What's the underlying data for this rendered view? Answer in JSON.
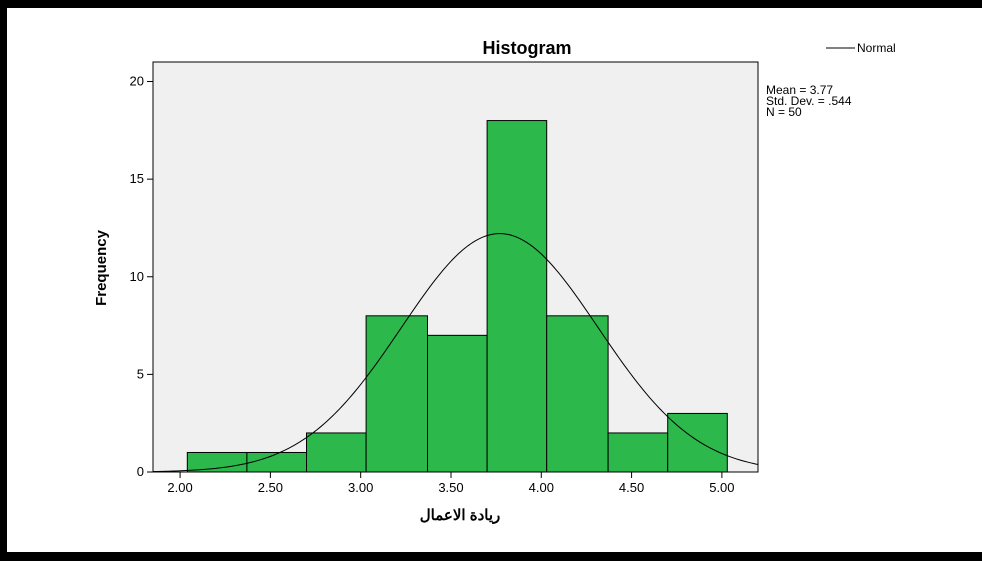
{
  "chart_data": {
    "type": "bar",
    "title": "Histogram",
    "xlabel": "ريادة الاعمال",
    "ylabel": "Frequency",
    "xlim": [
      1.85,
      5.2
    ],
    "ylim": [
      0,
      21
    ],
    "xticks": [
      2.0,
      2.5,
      3.0,
      3.5,
      4.0,
      4.5,
      5.0
    ],
    "xtick_labels": [
      "2.00",
      "2.50",
      "3.00",
      "3.50",
      "4.00",
      "4.50",
      "5.00"
    ],
    "yticks": [
      0,
      5,
      10,
      15,
      20
    ],
    "ytick_labels": [
      "0",
      "5",
      "10",
      "15",
      "20"
    ],
    "bins": [
      {
        "x0": 2.04,
        "x1": 2.37,
        "count": 1
      },
      {
        "x0": 2.37,
        "x1": 2.7,
        "count": 1
      },
      {
        "x0": 2.7,
        "x1": 3.03,
        "count": 2
      },
      {
        "x0": 3.03,
        "x1": 3.37,
        "count": 8
      },
      {
        "x0": 3.37,
        "x1": 3.7,
        "count": 7
      },
      {
        "x0": 3.7,
        "x1": 4.03,
        "count": 18
      },
      {
        "x0": 4.03,
        "x1": 4.37,
        "count": 8
      },
      {
        "x0": 4.37,
        "x1": 4.7,
        "count": 2
      },
      {
        "x0": 4.7,
        "x1": 5.03,
        "count": 3
      }
    ],
    "normal_curve": {
      "mean": 3.77,
      "sd": 0.544,
      "n": 50,
      "bin_width": 0.333
    },
    "legend": {
      "label": "Normal",
      "placement": "top-right"
    },
    "stats": [
      "Mean = 3.77",
      "Std. Dev. = .544",
      "N = 50"
    ],
    "grid": false,
    "colors": {
      "bar": "#2db84b",
      "plot_bg": "#f0f0f0",
      "curve": "#000000"
    }
  }
}
